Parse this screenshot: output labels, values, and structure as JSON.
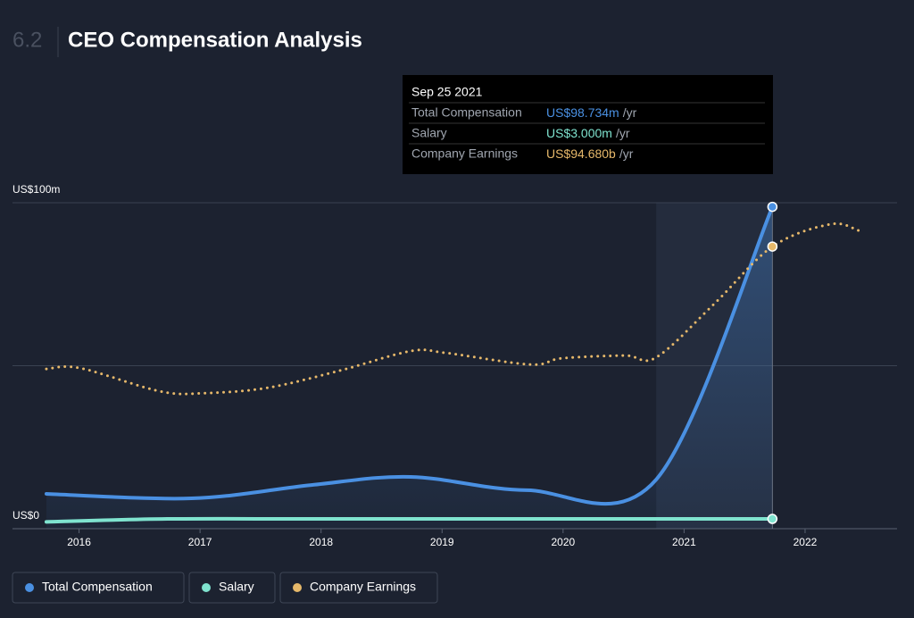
{
  "header": {
    "section": "6.2",
    "title": "CEO Compensation Analysis"
  },
  "chart_data": {
    "type": "line",
    "xlim": [
      2015.45,
      2022.76
    ],
    "xticks": [
      2016,
      2017,
      2018,
      2019,
      2020,
      2021,
      2022
    ],
    "ylim": [
      0,
      100
    ],
    "yticks": [
      {
        "value": 0,
        "label": "US$0"
      },
      {
        "value": 100,
        "label": "US$100m"
      }
    ],
    "ygrid": [
      0,
      50,
      100
    ],
    "y2lim": [
      0,
      109.4
    ],
    "series": [
      {
        "name": "Total Compensation",
        "color": "#4a90e2",
        "x": [
          2015.73,
          2016.93,
          2017.92,
          2018.74,
          2019.7,
          2020.77,
          2021.73
        ],
        "values": [
          10.7,
          9.3,
          13.4,
          15.9,
          11.8,
          15.1,
          98.734
        ]
      },
      {
        "name": "Salary",
        "color": "#7fe3cf",
        "x": [
          2015.73,
          2016.73,
          2017.92,
          2018.74,
          2019.7,
          2020.77,
          2021.73
        ],
        "values": [
          2.1,
          3.0,
          3.0,
          3.0,
          3.0,
          3.0,
          3.0
        ]
      },
      {
        "name": "Company Earnings",
        "color": "#e6b86a",
        "axis": "y2",
        "dashed": true,
        "x": [
          2015.73,
          2016.01,
          2016.67,
          2017.04,
          2017.56,
          2018.15,
          2018.74,
          2019.03,
          2019.73,
          2019.99,
          2020.51,
          2020.77,
          2021.25,
          2021.73,
          2022.21,
          2022.44
        ],
        "values": [
          53.6,
          53.9,
          46.1,
          45.5,
          47.3,
          53.0,
          59.6,
          59.0,
          55.1,
          57.2,
          58.1,
          57.5,
          75.5,
          94.68,
          102.2,
          100.1
        ]
      }
    ],
    "tooltip": {
      "date": "Sep 25 2021",
      "rows": [
        {
          "label": "Total Compensation",
          "value": "US$98.734m",
          "unit": "/yr"
        },
        {
          "label": "Salary",
          "value": "US$3.000m",
          "unit": "/yr"
        },
        {
          "label": "Company Earnings",
          "value": "US$94.680b",
          "unit": "/yr"
        }
      ]
    }
  }
}
